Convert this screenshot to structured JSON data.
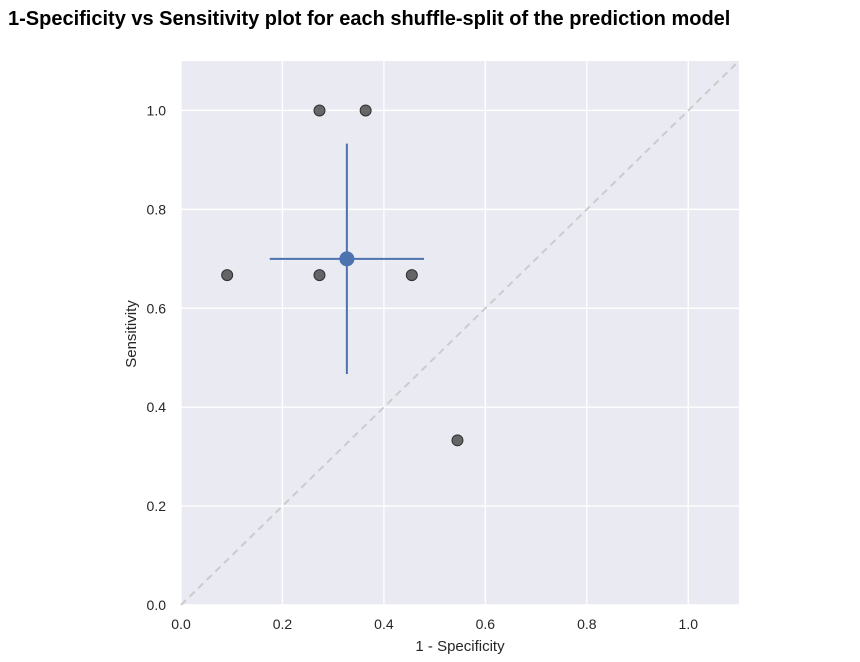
{
  "chart_data": {
    "type": "scatter",
    "title": "1-Specificity vs Sensitivity plot for each shuffle-split of the prediction model",
    "xlabel": "1 - Specificity",
    "ylabel": "Sensitivity",
    "xlim": [
      0.0,
      1.1
    ],
    "ylim": [
      0.0,
      1.1
    ],
    "xticks": [
      0.0,
      0.2,
      0.4,
      0.6,
      0.8,
      1.0
    ],
    "xtick_labels": [
      "0.0",
      "0.2",
      "0.4",
      "0.6",
      "0.8",
      "1.0"
    ],
    "yticks": [
      0.0,
      0.2,
      0.4,
      0.6,
      0.8,
      1.0
    ],
    "ytick_labels": [
      "0.0",
      "0.2",
      "0.4",
      "0.6",
      "0.8",
      "1.0"
    ],
    "grid": true,
    "legend": "none",
    "splits": {
      "points": [
        {
          "x": 0.273,
          "y": 1.0
        },
        {
          "x": 0.364,
          "y": 1.0
        },
        {
          "x": 0.091,
          "y": 0.667
        },
        {
          "x": 0.273,
          "y": 0.667
        },
        {
          "x": 0.455,
          "y": 0.667
        },
        {
          "x": 0.545,
          "y": 0.333
        }
      ],
      "color": "#262626"
    },
    "mean": {
      "x": 0.327,
      "y": 0.7,
      "x_err": 0.152,
      "y_err": 0.233,
      "color": "#4c72b0"
    },
    "reference_line": {
      "from": [
        0.0,
        0.0
      ],
      "to": [
        1.1,
        1.1
      ],
      "style": "dashed",
      "color": "#cccccc"
    },
    "colors": {
      "plot_background": "#eaeaf2",
      "grid": "#ffffff",
      "text": "#262626"
    }
  }
}
